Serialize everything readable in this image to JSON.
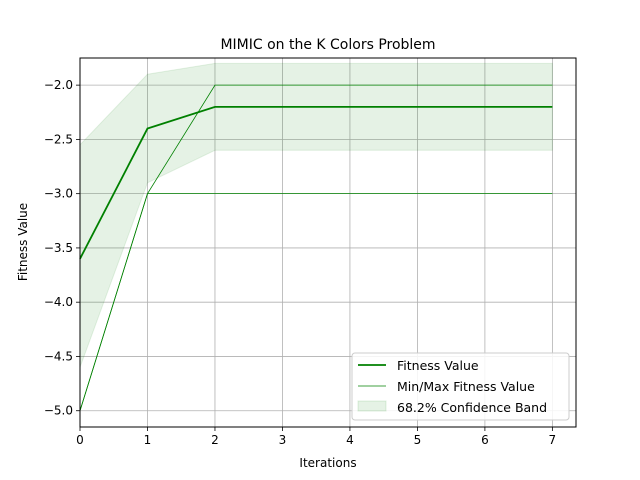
{
  "chart_data": {
    "type": "line",
    "title": "MIMIC on the K Colors Problem",
    "xlabel": "Iterations",
    "ylabel": "Fitness Value",
    "x": [
      0,
      1,
      2,
      3,
      4,
      5,
      6,
      7
    ],
    "xlim": [
      0,
      7.35
    ],
    "ylim": [
      -5.15,
      -1.75
    ],
    "xticks": [
      0,
      1,
      2,
      3,
      4,
      5,
      6,
      7
    ],
    "yticks": [
      -5.0,
      -4.5,
      -4.0,
      -3.5,
      -3.0,
      -2.5,
      -2.0
    ],
    "xtick_labels": [
      "0",
      "1",
      "2",
      "3",
      "4",
      "5",
      "6",
      "7"
    ],
    "ytick_labels": [
      "−5.0",
      "−4.5",
      "−4.0",
      "−3.5",
      "−3.0",
      "−2.5",
      "−2.0"
    ],
    "grid": true,
    "legend_position": "lower-right",
    "series": [
      {
        "name": "Fitness Value",
        "role": "mean",
        "color": "#008000",
        "values": [
          -3.6,
          -2.4,
          -2.2,
          -2.2,
          -2.2,
          -2.2,
          -2.2,
          -2.2
        ]
      },
      {
        "name": "Min/Max Fitness Value",
        "role": "min",
        "color": "#008000",
        "values": [
          -5.0,
          -3.0,
          -3.0,
          -3.0,
          -3.0,
          -3.0,
          -3.0,
          -3.0
        ]
      },
      {
        "role": "max",
        "color": "#008000",
        "values": [
          -5.0,
          -3.0,
          -2.0,
          -2.0,
          -2.0,
          -2.0,
          -2.0,
          -2.0
        ]
      }
    ],
    "band": {
      "name": "68.2% Confidence Band",
      "color": "#008000",
      "lower": [
        -4.6,
        -2.9,
        -2.6,
        -2.6,
        -2.6,
        -2.6,
        -2.6,
        -2.6
      ],
      "upper": [
        -2.55,
        -1.9,
        -1.8,
        -1.8,
        -1.8,
        -1.8,
        -1.8,
        -1.8
      ]
    }
  }
}
